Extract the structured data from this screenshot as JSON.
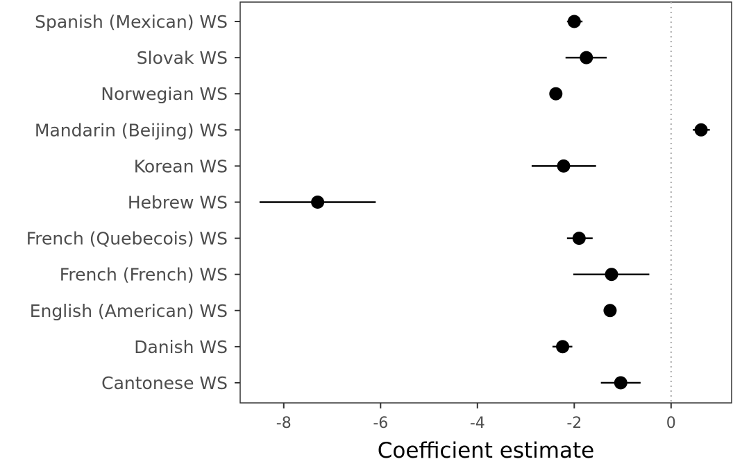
{
  "chart_data": {
    "type": "scatter",
    "xlabel": "Coefficient estimate",
    "ylabel": "",
    "xlim": [
      -8.9,
      1.25
    ],
    "x_ticks": [
      -8,
      -6,
      -4,
      -2,
      0
    ],
    "x_tick_labels": [
      "-8",
      "-6",
      "-4",
      "-2",
      "0"
    ],
    "reference_line": 0,
    "grid": false,
    "categories": [
      "Spanish (Mexican) WS",
      "Slovak WS",
      "Norwegian WS",
      "Mandarin (Beijing) WS",
      "Korean WS",
      "Hebrew WS",
      "French (Quebecois) WS",
      "French (French) WS",
      "English (American) WS",
      "Danish WS",
      "Cantonese WS"
    ],
    "estimates": [
      -2.0,
      -1.75,
      -2.38,
      0.62,
      -2.22,
      -7.3,
      -1.9,
      -1.23,
      -1.26,
      -2.24,
      -1.04
    ],
    "lower": [
      -2.15,
      -2.18,
      -2.38,
      0.45,
      -2.88,
      -8.5,
      -2.15,
      -2.02,
      -1.26,
      -2.45,
      -1.45
    ],
    "upper": [
      -1.83,
      -1.33,
      -2.38,
      0.8,
      -1.55,
      -6.1,
      -1.62,
      -0.45,
      -1.26,
      -2.04,
      -0.63
    ],
    "colors": {
      "point": "#000000",
      "axis": "#333333",
      "ref_line": "#aaaaaa"
    }
  }
}
